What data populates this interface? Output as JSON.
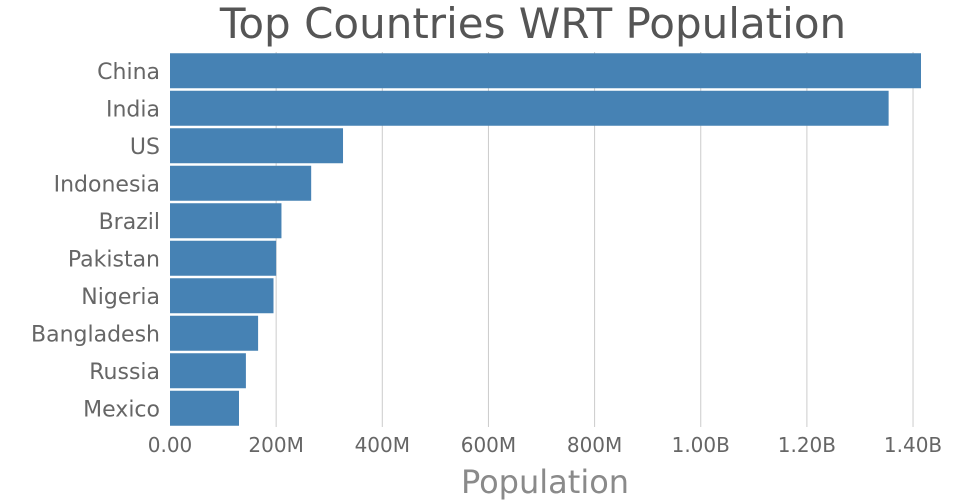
{
  "chart_data": {
    "type": "bar",
    "orientation": "horizontal",
    "title": "Top Countries WRT Population",
    "xlabel": "Population",
    "ylabel": "",
    "categories": [
      "China",
      "India",
      "US",
      "Indonesia",
      "Brazil",
      "Pakistan",
      "Nigeria",
      "Bangladesh",
      "Russia",
      "Mexico"
    ],
    "values": [
      1415000000,
      1354000000,
      326000000,
      266000000,
      210000000,
      200000000,
      195000000,
      166000000,
      143000000,
      130000000
    ],
    "xlim": [
      0,
      1415000000
    ],
    "x_ticks": [
      0,
      200000000,
      400000000,
      600000000,
      800000000,
      1000000000,
      1200000000,
      1400000000
    ],
    "x_tick_labels": [
      "0.00",
      "200M",
      "400M",
      "600M",
      "800M",
      "1.00B",
      "1.20B",
      "1.40B"
    ],
    "grid": true,
    "legend": "none",
    "bar_color": "#4682b4"
  }
}
